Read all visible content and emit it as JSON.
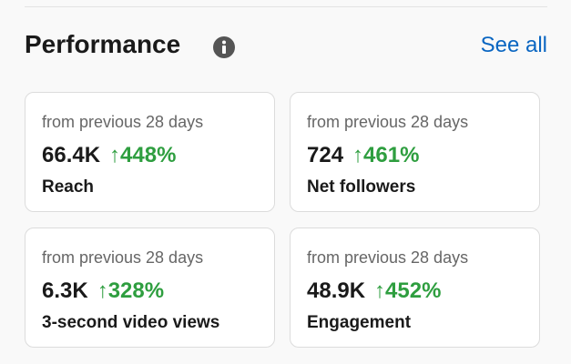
{
  "header": {
    "title": "Performance",
    "link": "See all"
  },
  "cards": [
    {
      "subtitle": "from previous 28 days",
      "value": "66.4K",
      "change": "↑448%",
      "label": "Reach"
    },
    {
      "subtitle": "from previous 28 days",
      "value": "724",
      "change": "↑461%",
      "label": "Net followers"
    },
    {
      "subtitle": "from previous 28 days",
      "value": "6.3K",
      "change": "↑328%",
      "label": "3-second video views"
    },
    {
      "subtitle": "from previous 28 days",
      "value": "48.9K",
      "change": "↑452%",
      "label": "Engagement"
    }
  ]
}
